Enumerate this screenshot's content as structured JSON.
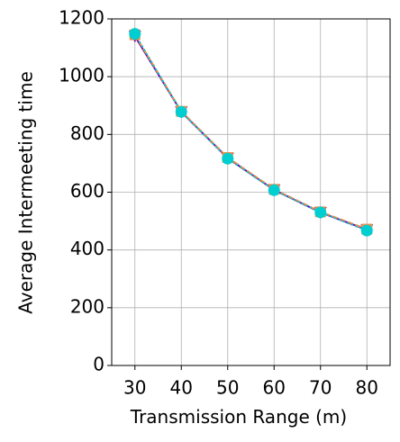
{
  "chart_data": {
    "type": "line",
    "xlabel": "Transmission Range (m)",
    "ylabel": "Average Intermeeting time",
    "x": [
      30,
      40,
      50,
      60,
      70,
      80
    ],
    "series": [
      {
        "color": "#6a0dad",
        "marker": "triangle-down",
        "linestyle": "solid",
        "values": [
          1140,
          878,
          718,
          608,
          530,
          470
        ]
      },
      {
        "color": "#e8904a",
        "marker": "square",
        "linestyle": "dashed",
        "values": [
          1145,
          880,
          720,
          610,
          532,
          472
        ]
      },
      {
        "color": "#00ced1",
        "marker": "circle",
        "linestyle": "dotted",
        "values": [
          1148,
          878,
          716,
          607,
          530,
          467
        ]
      }
    ],
    "xlim": [
      25,
      85
    ],
    "xticks": [
      30,
      40,
      50,
      60,
      70,
      80
    ],
    "ylim": [
      0,
      1200
    ],
    "yticks": [
      0,
      200,
      400,
      600,
      800,
      1000,
      1200
    ],
    "grid": true
  }
}
